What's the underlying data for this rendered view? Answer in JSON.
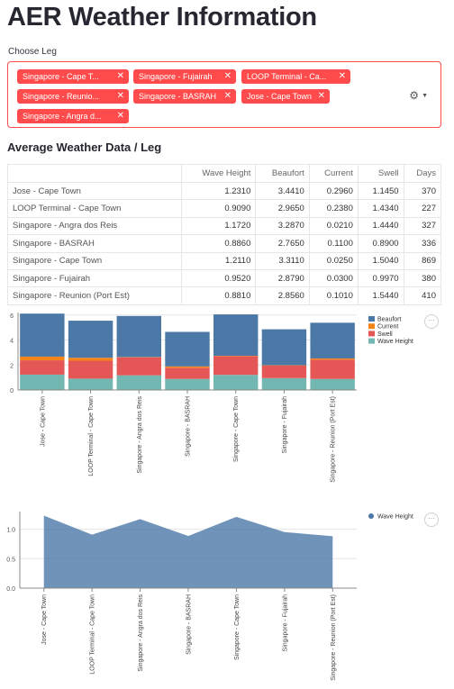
{
  "title": "AER Weather Information",
  "selector": {
    "label": "Choose Leg",
    "tags": [
      {
        "label": "Singapore - Cape T..."
      },
      {
        "label": "Singapore - Fujairah"
      },
      {
        "label": "LOOP Terminal - Ca..."
      },
      {
        "label": "Singapore - Reunio..."
      },
      {
        "label": "Singapore - BASRAH"
      },
      {
        "label": "Jose - Cape Town"
      },
      {
        "label": "Singapore - Angra d..."
      }
    ],
    "remove_glyph": "✕",
    "settings_icon": "gear-icon",
    "settings_glyph": "⚙",
    "caret_glyph": "▼"
  },
  "section_title": "Average Weather Data / Leg",
  "table": {
    "columns": [
      "",
      "Wave Height",
      "Beaufort",
      "Current",
      "Swell",
      "Days"
    ],
    "rows": [
      [
        "Jose - Cape Town",
        "1.2310",
        "3.4410",
        "0.2960",
        "1.1450",
        "370"
      ],
      [
        "LOOP Terminal - Cape Town",
        "0.9090",
        "2.9650",
        "0.2380",
        "1.4340",
        "227"
      ],
      [
        "Singapore - Angra dos Reis",
        "1.1720",
        "3.2870",
        "0.0210",
        "1.4440",
        "327"
      ],
      [
        "Singapore - BASRAH",
        "0.8860",
        "2.7650",
        "0.1100",
        "0.8900",
        "336"
      ],
      [
        "Singapore - Cape Town",
        "1.2110",
        "3.3110",
        "0.0250",
        "1.5040",
        "869"
      ],
      [
        "Singapore - Fujairah",
        "0.9520",
        "2.8790",
        "0.0300",
        "0.9970",
        "380"
      ],
      [
        "Singapore - Reunion (Port Est)",
        "0.8810",
        "2.8560",
        "0.1010",
        "1.5440",
        "410"
      ]
    ]
  },
  "colors": {
    "beaufort": "#4c78a8",
    "current": "#f58518",
    "swell": "#e45756",
    "wave_height": "#72b7b2",
    "area": "#4c78a8"
  },
  "menu_glyph": "···",
  "chart_data": [
    {
      "type": "bar",
      "stacked": true,
      "categories": [
        "Jose - Cape Town",
        "LOOP Terminal - Cape Town",
        "Singapore - Angra dos Reis",
        "Singapore - BASRAH",
        "Singapore - Cape Town",
        "Singapore - Fujairah",
        "Singapore - Reunion (Port Est)"
      ],
      "series": [
        {
          "name": "Wave Height",
          "values": [
            1.231,
            0.909,
            1.172,
            0.886,
            1.211,
            0.952,
            0.881
          ]
        },
        {
          "name": "Swell",
          "values": [
            1.145,
            1.434,
            1.444,
            0.89,
            1.504,
            0.997,
            1.544
          ]
        },
        {
          "name": "Current",
          "values": [
            0.296,
            0.238,
            0.021,
            0.11,
            0.025,
            0.03,
            0.101
          ]
        },
        {
          "name": "Beaufort",
          "values": [
            3.441,
            2.965,
            3.287,
            2.765,
            3.311,
            2.879,
            2.856
          ]
        }
      ],
      "legend": [
        "Beaufort",
        "Current",
        "Swell",
        "Wave Height"
      ],
      "yticks": [
        0,
        2,
        4,
        6
      ],
      "ylim": [
        0,
        6.2
      ],
      "grid": true,
      "legend_position": "right"
    },
    {
      "type": "area",
      "categories": [
        "Jose - Cape Town",
        "LOOP Terminal - Cape Town",
        "Singapore - Angra dos Reis",
        "Singapore - BASRAH",
        "Singapore - Cape Town",
        "Singapore - Fujairah",
        "Singapore - Reunion (Port Est)"
      ],
      "series": [
        {
          "name": "Wave Height",
          "values": [
            1.231,
            0.909,
            1.172,
            0.886,
            1.211,
            0.952,
            0.881
          ]
        }
      ],
      "legend": [
        "Wave Height"
      ],
      "yticks": [
        "0.0",
        "0.5",
        "1.0"
      ],
      "ylim": [
        0,
        1.3
      ],
      "grid": true,
      "legend_position": "right"
    }
  ]
}
